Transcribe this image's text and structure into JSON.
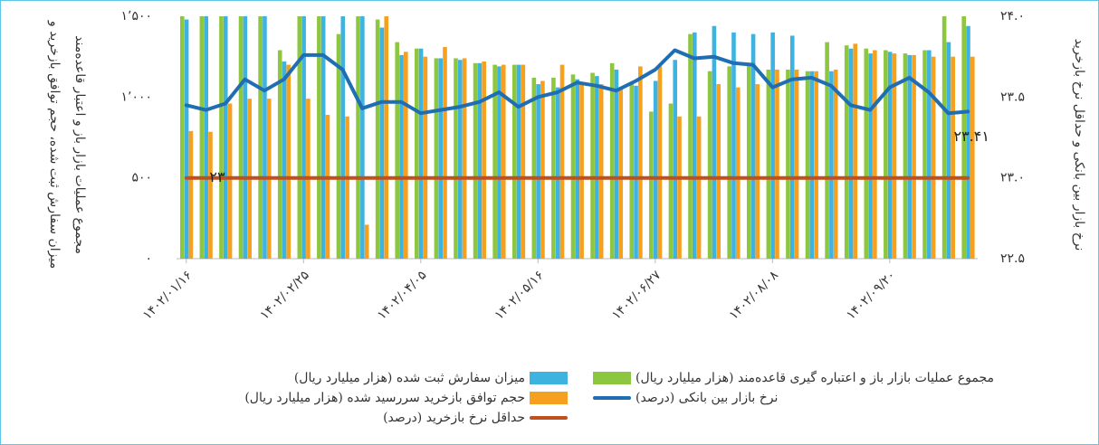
{
  "chart_data": {
    "type": "bar",
    "ylabel": [
      "میزان سفارش ثبت شده، حجم توافق بازخرید و",
      "مجموع عملیات بازار باز و اعتبار قاعده‌مند"
    ],
    "y2label": "نرخ بازار بین بانکی و حداقل نرخ بازخرید",
    "categories": [
      "۱۴۰۲/۰۱/۱۶",
      null,
      null,
      null,
      null,
      null,
      "۱۴۰۲/۰۲/۲۵",
      null,
      null,
      null,
      null,
      null,
      "۱۴۰۲/۰۴/۰۵",
      null,
      null,
      null,
      null,
      null,
      "۱۴۰۲/۰۵/۱۶",
      null,
      null,
      null,
      null,
      null,
      "۱۴۰۲/۰۶/۲۷",
      null,
      null,
      null,
      null,
      null,
      "۱۴۰۲/۰۸/۰۸",
      null,
      null,
      null,
      null,
      null,
      "۱۴۰۲/۰۹/۲۰",
      null,
      null,
      null,
      null
    ],
    "ylim": [
      0,
      1500
    ],
    "yticks": [
      {
        "value": 0,
        "label": "۰"
      },
      {
        "value": 500,
        "label": "۵۰۰"
      },
      {
        "value": 1000,
        "label": "۱٬۰۰۰"
      },
      {
        "value": 1500,
        "label": "۱٬۵۰۰"
      }
    ],
    "y2lim": [
      22.5,
      24.0
    ],
    "y2ticks": [
      {
        "value": 22.5,
        "label": "۲۲.۵"
      },
      {
        "value": 23.0,
        "label": "۲۳.۰"
      },
      {
        "value": 23.5,
        "label": "۲۳.۵"
      },
      {
        "value": 24.0,
        "label": "۲۴.۰"
      }
    ],
    "series": [
      {
        "name": "مجموع عملیات بازار باز و اعتباره گیری قاعده‌مند (هزار میلیارد ریال)",
        "type": "bar",
        "color": "#8dc63f",
        "values": [
          1500,
          1500,
          1500,
          1500,
          1500,
          1290,
          1500,
          1500,
          1390,
          1500,
          1480,
          1340,
          1300,
          1240,
          1240,
          1210,
          1200,
          1200,
          1120,
          1120,
          1140,
          1150,
          1210,
          1090,
          910,
          960,
          1390,
          1160,
          1190,
          1200,
          1170,
          1170,
          1160,
          1340,
          1320,
          1300,
          1290,
          1270,
          1290,
          1500,
          1500
        ]
      },
      {
        "name": "میزان سفارش ثبت شده (هزار میلیارد ریال)",
        "type": "bar",
        "color": "#3fb3e0",
        "values": [
          1480,
          1500,
          1500,
          1500,
          1500,
          1220,
          1500,
          1500,
          1500,
          1500,
          1430,
          1260,
          1300,
          1240,
          1230,
          1210,
          1190,
          1200,
          1080,
          1060,
          1110,
          1130,
          1170,
          1070,
          1100,
          1230,
          1400,
          1440,
          1400,
          1390,
          1400,
          1380,
          1160,
          1160,
          1300,
          1270,
          1280,
          1260,
          1290,
          1340,
          1440
        ]
      },
      {
        "name": "حجم توافق بازخرید سررسید شده (هزار میلیارد ریال)",
        "type": "bar",
        "color": "#f5a01e",
        "values": [
          790,
          785,
          960,
          990,
          990,
          1200,
          990,
          890,
          880,
          210,
          1500,
          1280,
          1250,
          1310,
          1240,
          1220,
          1200,
          1200,
          1100,
          1200,
          1090,
          1080,
          1060,
          1190,
          1190,
          880,
          880,
          1080,
          1060,
          1080,
          1170,
          1170,
          1160,
          1170,
          1330,
          1290,
          1270,
          1260,
          1250,
          1250,
          1250
        ]
      },
      {
        "name": "نرخ بازار بین بانکی (درصد)",
        "type": "line",
        "axis": "y2",
        "color": "#1f6db3",
        "values": [
          23.45,
          23.42,
          23.46,
          23.61,
          23.54,
          23.61,
          23.76,
          23.76,
          23.67,
          23.43,
          23.47,
          23.47,
          23.4,
          23.42,
          23.44,
          23.47,
          23.53,
          23.44,
          23.5,
          23.53,
          23.59,
          23.57,
          23.54,
          23.6,
          23.67,
          23.79,
          23.74,
          23.75,
          23.71,
          23.7,
          23.56,
          23.61,
          23.62,
          23.57,
          23.45,
          23.42,
          23.56,
          23.62,
          23.53,
          23.4,
          23.41
        ],
        "value_labels": [
          null,
          null,
          null,
          null,
          null,
          null,
          null,
          null,
          null,
          null,
          null,
          null,
          null,
          null,
          null,
          null,
          null,
          null,
          null,
          null,
          null,
          null,
          null,
          null,
          null,
          null,
          null,
          null,
          null,
          null,
          null,
          null,
          null,
          null,
          null,
          null,
          null,
          null,
          null,
          null,
          "۲۳.۴۱"
        ]
      },
      {
        "name": "حداقل نرخ بازخرید (درصد)",
        "type": "line",
        "axis": "y2",
        "color": "#c0501f",
        "values": [
          23,
          23,
          23,
          23,
          23,
          23,
          23,
          23,
          23,
          23,
          23,
          23,
          23,
          23,
          23,
          23,
          23,
          23,
          23,
          23,
          23,
          23,
          23,
          23,
          23,
          23,
          23,
          23,
          23,
          23,
          23,
          23,
          23,
          23,
          23,
          23,
          23,
          23,
          23,
          23,
          23
        ],
        "value_labels": [
          null,
          "۲۳",
          null,
          null,
          null,
          null,
          null,
          null,
          null,
          null,
          null,
          null,
          null,
          null,
          null,
          null,
          null,
          null,
          null,
          null,
          null,
          null,
          null,
          null,
          null,
          null,
          null,
          null,
          null,
          null,
          null,
          null,
          null,
          null,
          null,
          null,
          null,
          null,
          null,
          null,
          null
        ]
      }
    ]
  }
}
